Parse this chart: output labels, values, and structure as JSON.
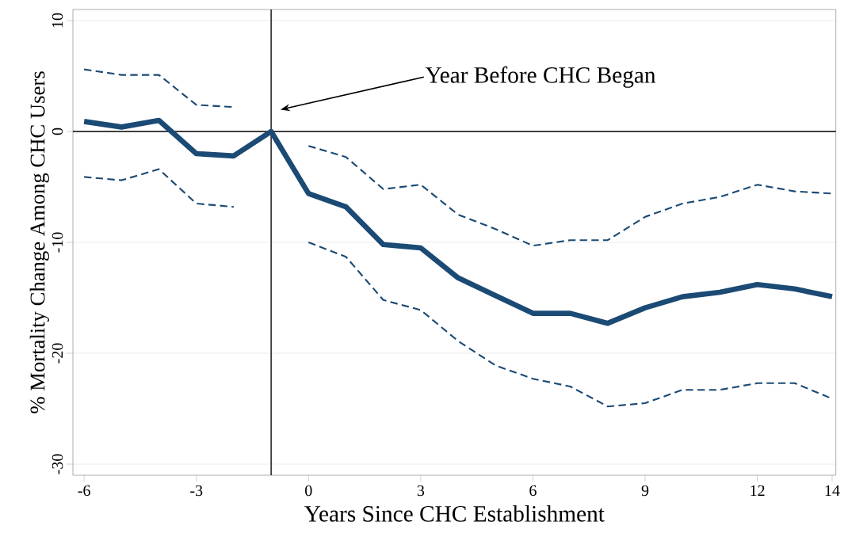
{
  "chart_data": {
    "type": "line",
    "xlabel": "Years Since CHC Establishment",
    "ylabel": "% Mortality Change Among CHC Users",
    "x": [
      -6,
      -5,
      -4,
      -3,
      -2,
      -1,
      0,
      1,
      2,
      3,
      4,
      5,
      6,
      7,
      8,
      9,
      10,
      11,
      12,
      13,
      14
    ],
    "series": [
      {
        "color": "#1b4a74",
        "line_style": "solid",
        "values": [
          0.9,
          0.4,
          1.0,
          -2.0,
          -2.2,
          0,
          -5.6,
          -6.8,
          -10.2,
          -10.5,
          -13.2,
          -14.8,
          -16.4,
          -16.4,
          -17.3,
          -15.9,
          -14.9,
          -14.5,
          -13.8,
          -14.2,
          -14.9
        ]
      },
      {
        "color": "#1b4a74",
        "line_style": "dashed",
        "values": [
          5.6,
          5.1,
          5.1,
          2.4,
          2.2,
          null,
          -1.3,
          -2.3,
          -5.2,
          -4.8,
          -7.5,
          -8.8,
          -10.3,
          -9.8,
          -9.8,
          -7.7,
          -6.5,
          -5.9,
          -4.8,
          -5.4,
          -5.6
        ]
      },
      {
        "color": "#1b4a74",
        "line_style": "dashed",
        "values": [
          -4.1,
          -4.4,
          -3.4,
          -6.5,
          -6.8,
          null,
          -10.0,
          -11.3,
          -15.2,
          -16.1,
          -18.9,
          -21.1,
          -22.3,
          -23.0,
          -24.8,
          -24.5,
          -23.3,
          -23.3,
          -22.7,
          -22.7,
          -24.1
        ]
      }
    ],
    "xlim": [
      -6.3,
      14.1
    ],
    "ylim": [
      -31,
      11
    ],
    "xticks": [
      -6,
      -3,
      0,
      3,
      6,
      9,
      12,
      14
    ],
    "yticks": [
      -30,
      -20,
      -10,
      0,
      10
    ],
    "grid": "y",
    "marker": "none",
    "ref_lines": [
      {
        "axis": "y",
        "value": 0,
        "color": "#000000"
      },
      {
        "axis": "x",
        "value": -1,
        "color": "#000000"
      }
    ],
    "annotations": [
      "Year Before CHC Began"
    ]
  }
}
